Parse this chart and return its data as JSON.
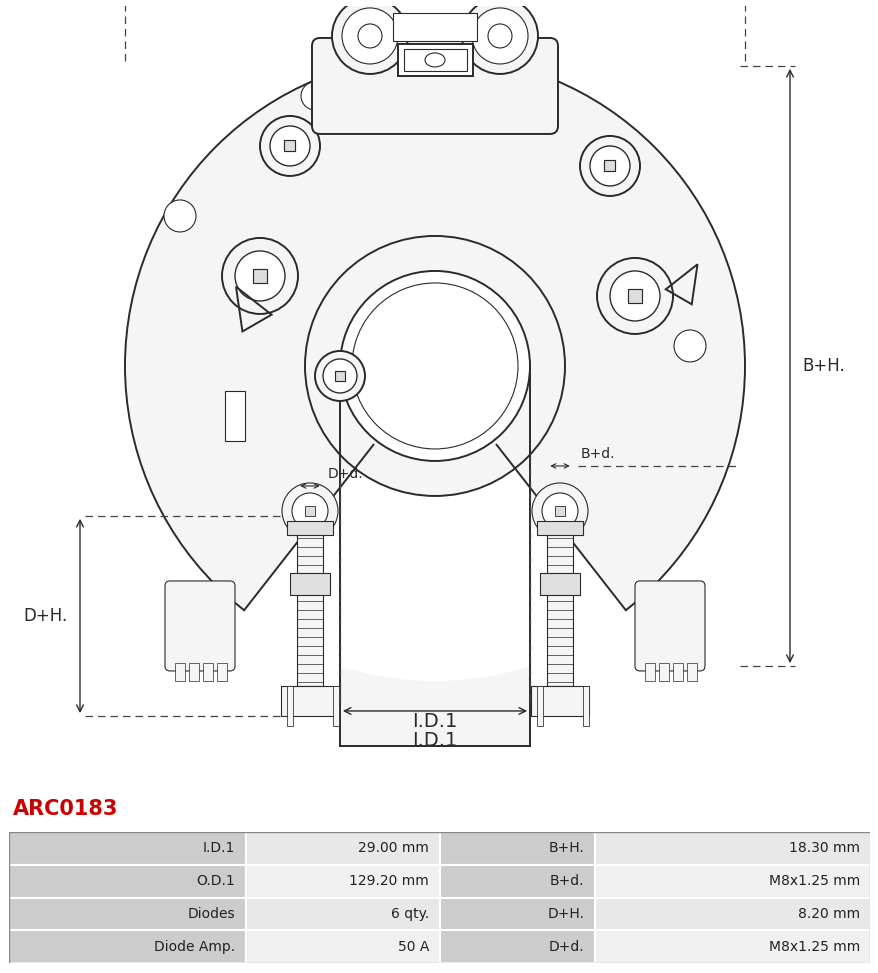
{
  "title_code": "ARC0183",
  "title_color": "#cc0000",
  "table_data": [
    [
      "I.D.1",
      "29.00 mm",
      "B+H.",
      "18.30 mm"
    ],
    [
      "O.D.1",
      "129.20 mm",
      "B+d.",
      "M8x1.25 mm"
    ],
    [
      "Diodes",
      "6 qty.",
      "D+H.",
      "8.20 mm"
    ],
    [
      "Diode Amp.",
      "50 A",
      "D+d.",
      "M8x1.25 mm"
    ]
  ],
  "background_color": "#ffffff",
  "line_color": "#2a2a2a",
  "fill_color": "#f5f5f5",
  "table_col_headers_bg": "#cccccc",
  "table_row_bg_alt": "#e8e8e8",
  "table_row_bg": "#f0f0f0"
}
